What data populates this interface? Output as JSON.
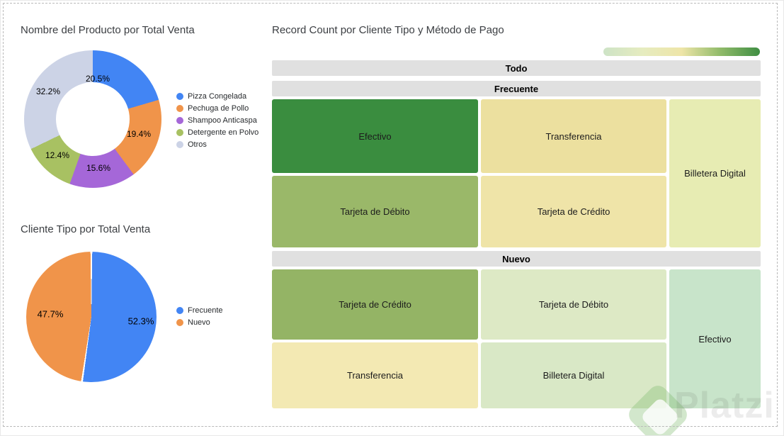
{
  "watermark": {
    "text": "Platzi"
  },
  "chart_data": [
    {
      "type": "donut",
      "title": "Nombre del Producto por Total Venta",
      "categories": [
        "Pizza Congelada",
        "Pechuga de Pollo",
        "Shampoo Anticaspa",
        "Detergente en Polvo",
        "Otros"
      ],
      "values": [
        20.5,
        19.4,
        15.6,
        12.4,
        32.2
      ],
      "labels": [
        "20.5%",
        "19.4%",
        "15.6%",
        "12.4%",
        "32.2%"
      ],
      "colors": [
        "#4285f4",
        "#f0944a",
        "#a567d8",
        "#a8c162",
        "#ccd3e6"
      ],
      "legend_position": "right",
      "unit": "percent of Total Venta"
    },
    {
      "type": "pie",
      "title": "Cliente Tipo por Total Venta",
      "categories": [
        "Frecuente",
        "Nuevo"
      ],
      "values": [
        52.3,
        47.7
      ],
      "labels": [
        "52.3%",
        "47.7%"
      ],
      "colors": [
        "#4285f4",
        "#f0944a"
      ],
      "legend_position": "right",
      "unit": "percent of Total Venta"
    },
    {
      "type": "treemap",
      "title": "Record Count por Cliente Tipo y Método de Pago",
      "root_label": "Todo",
      "color_scale": [
        "#cde3c6",
        "#e6ecc0",
        "#eee5a8",
        "#8fba69",
        "#3f8e43"
      ],
      "groups": [
        {
          "label": "Frecuente",
          "cells": [
            {
              "label": "Efectivo",
              "color": "#3a8d3f"
            },
            {
              "label": "Transferencia",
              "color": "#ece09f"
            },
            {
              "label": "Billetera Digital",
              "color": "#e7ecb3"
            },
            {
              "label": "Tarjeta de Débito",
              "color": "#9ab869"
            },
            {
              "label": "Tarjeta de Crédito",
              "color": "#efe4a8"
            }
          ]
        },
        {
          "label": "Nuevo",
          "cells": [
            {
              "label": "Tarjeta de Crédito",
              "color": "#94b465"
            },
            {
              "label": "Tarjeta de Débito",
              "color": "#dde9c5"
            },
            {
              "label": "Efectivo",
              "color": "#c8e4ca"
            },
            {
              "label": "Transferencia",
              "color": "#f3e9b3"
            },
            {
              "label": "Billetera Digital",
              "color": "#d9e8c6"
            }
          ]
        }
      ]
    }
  ]
}
